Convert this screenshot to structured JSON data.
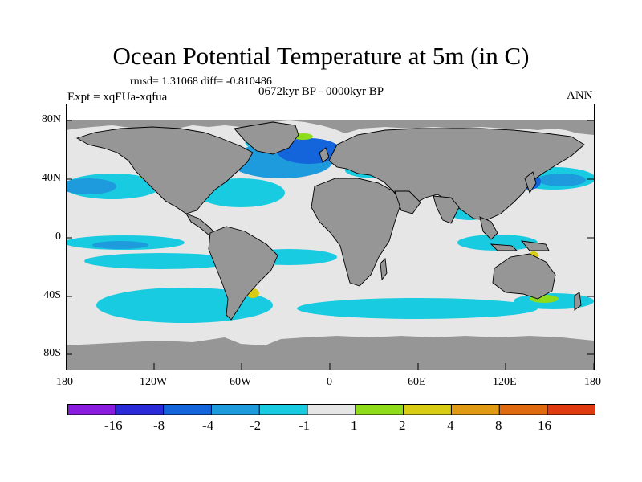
{
  "title": "Ocean Potential Temperature at 5m (in C)",
  "stats": "rmsd= 1.31068  diff= -0.810486",
  "period": "0672kyr BP - 0000kyr BP",
  "experiment": "Expt = xqFUa-xqfua",
  "season": "ANN",
  "map": {
    "y_ticks": [
      "80N",
      "40N",
      "0",
      "40S",
      "80S"
    ],
    "x_ticks": [
      "180",
      "120W",
      "60W",
      "0",
      "60E",
      "120E",
      "180"
    ],
    "colors": {
      "land": "#969696",
      "ocean_neutral": "#e6e6e6",
      "coast": "#000000"
    }
  },
  "colorbar": {
    "labels": [
      "-16",
      "-8",
      "-4",
      "-2",
      "-1",
      "1",
      "2",
      "4",
      "8",
      "16"
    ],
    "colors": [
      "#8a1ce0",
      "#2a2ad8",
      "#1464dc",
      "#1e9bdc",
      "#19cbe0",
      "#e6e6e6",
      "#8edc1a",
      "#d8cc14",
      "#e09a14",
      "#e06a10",
      "#e03a10"
    ]
  }
}
